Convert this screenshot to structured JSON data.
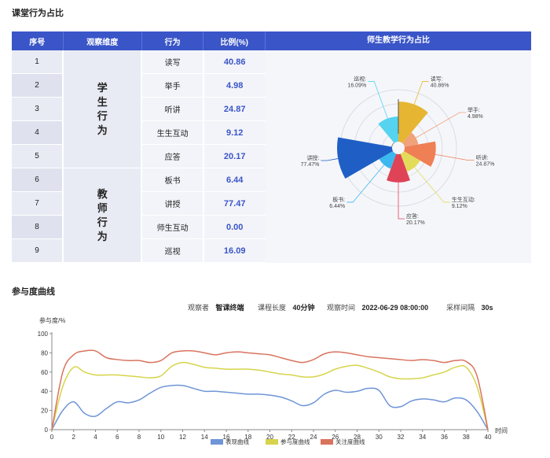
{
  "section1_title": "课堂行为占比",
  "section2_title": "参与度曲线",
  "table": {
    "headers": [
      "序号",
      "观察维度",
      "行为",
      "比例(%)"
    ],
    "groups": [
      {
        "label": "学生行为",
        "rows": [
          {
            "seq": "1",
            "behavior": "读写",
            "value": "40.86"
          },
          {
            "seq": "2",
            "behavior": "举手",
            "value": "4.98"
          },
          {
            "seq": "3",
            "behavior": "听讲",
            "value": "24.87"
          },
          {
            "seq": "4",
            "behavior": "生生互动",
            "value": "9.12"
          },
          {
            "seq": "5",
            "behavior": "应答",
            "value": "20.17"
          }
        ]
      },
      {
        "label": "教师行为",
        "rows": [
          {
            "seq": "6",
            "behavior": "板书",
            "value": "6.44"
          },
          {
            "seq": "7",
            "behavior": "讲授",
            "value": "77.47"
          },
          {
            "seq": "8",
            "behavior": "师生互动",
            "value": "0.00"
          },
          {
            "seq": "9",
            "behavior": "巡视",
            "value": "16.09"
          }
        ]
      }
    ]
  },
  "radar_title": "师生教学行为占比",
  "meta": {
    "observer_label": "观察者",
    "observer": "智课终端",
    "length_label": "课程长度",
    "length": "40分钟",
    "time_label": "观察时间",
    "time": "2022-06-29 08:00:00",
    "interval_label": "采样间隔",
    "interval": "30s"
  },
  "chart_data": [
    {
      "type": "pie",
      "subtype": "rose",
      "title": "师生教学行为占比",
      "slices": [
        {
          "name": "读写",
          "value": 40.86,
          "label": "40.86%",
          "color": "#e6b633"
        },
        {
          "name": "举手",
          "value": 4.98,
          "label": "4.98%",
          "color": "#f0a27a"
        },
        {
          "name": "听讲",
          "value": 24.87,
          "label": "24.87%",
          "color": "#ef7f55"
        },
        {
          "name": "生生互动",
          "value": 9.12,
          "label": "9.12%",
          "color": "#e3dc5a"
        },
        {
          "name": "应答",
          "value": 20.17,
          "label": "20.17%",
          "color": "#de4356"
        },
        {
          "name": "板书",
          "value": 6.44,
          "label": "6.44%",
          "color": "#3bb8ef"
        },
        {
          "name": "讲授",
          "value": 77.47,
          "label": "77.47%",
          "color": "#1f5fc5"
        },
        {
          "name": "师生互动",
          "value": 0.0,
          "label": "",
          "color": "#888888"
        },
        {
          "name": "巡视",
          "value": 16.09,
          "label": "16.09%",
          "color": "#56d3ef"
        }
      ]
    },
    {
      "type": "line",
      "title": "",
      "ylabel": "参与度/%",
      "xlabel": "时间",
      "ylim": [
        0,
        100
      ],
      "xlim": [
        0,
        40
      ],
      "yticks": [
        0,
        20,
        40,
        60,
        80,
        100
      ],
      "xticks": [
        0,
        2,
        4,
        6,
        8,
        10,
        12,
        14,
        16,
        18,
        20,
        22,
        24,
        26,
        28,
        30,
        32,
        34,
        36,
        38,
        40
      ],
      "grid": false,
      "legend": "bottom",
      "series": [
        {
          "name": "表现曲线",
          "color": "#6f95d8",
          "x": [
            0,
            1,
            2,
            3,
            4,
            5,
            6,
            7,
            8,
            9,
            10,
            11,
            12,
            13,
            14,
            15,
            16,
            17,
            18,
            19,
            20,
            21,
            22,
            23,
            24,
            25,
            26,
            27,
            28,
            29,
            30,
            31,
            32,
            33,
            34,
            35,
            36,
            37,
            38,
            39,
            40
          ],
          "values": [
            0,
            20,
            29,
            17,
            14,
            22,
            29,
            28,
            31,
            38,
            44,
            46,
            46,
            43,
            40,
            40,
            39,
            38,
            37,
            37,
            36,
            34,
            30,
            25,
            28,
            37,
            41,
            39,
            40,
            43,
            41,
            25,
            24,
            30,
            32,
            31,
            29,
            33,
            31,
            19,
            0
          ]
        },
        {
          "name": "参与度曲线",
          "color": "#d6d44c",
          "x": [
            0,
            1,
            2,
            3,
            4,
            5,
            6,
            7,
            8,
            9,
            10,
            11,
            12,
            13,
            14,
            15,
            16,
            17,
            18,
            19,
            20,
            21,
            22,
            23,
            24,
            25,
            26,
            27,
            28,
            29,
            30,
            31,
            32,
            33,
            34,
            35,
            36,
            37,
            38,
            39,
            40
          ],
          "values": [
            0,
            45,
            65,
            60,
            57,
            57,
            57,
            56,
            55,
            54,
            56,
            66,
            70,
            68,
            65,
            64,
            63,
            63,
            63,
            62,
            60,
            58,
            57,
            55,
            55,
            58,
            63,
            66,
            67,
            64,
            60,
            55,
            53,
            53,
            54,
            57,
            60,
            65,
            65,
            45,
            0
          ]
        },
        {
          "name": "关注度曲线",
          "color": "#d9735e",
          "x": [
            0,
            1,
            2,
            3,
            4,
            5,
            6,
            7,
            8,
            9,
            10,
            11,
            12,
            13,
            14,
            15,
            16,
            17,
            18,
            19,
            20,
            21,
            22,
            23,
            24,
            25,
            26,
            27,
            28,
            29,
            30,
            31,
            32,
            33,
            34,
            35,
            36,
            37,
            38,
            39,
            40
          ],
          "values": [
            0,
            60,
            78,
            82,
            82,
            75,
            73,
            72,
            72,
            70,
            72,
            80,
            82,
            82,
            80,
            78,
            80,
            81,
            80,
            79,
            78,
            75,
            72,
            70,
            73,
            79,
            81,
            80,
            78,
            76,
            75,
            74,
            73,
            72,
            73,
            72,
            70,
            72,
            71,
            56,
            0
          ]
        }
      ]
    }
  ]
}
